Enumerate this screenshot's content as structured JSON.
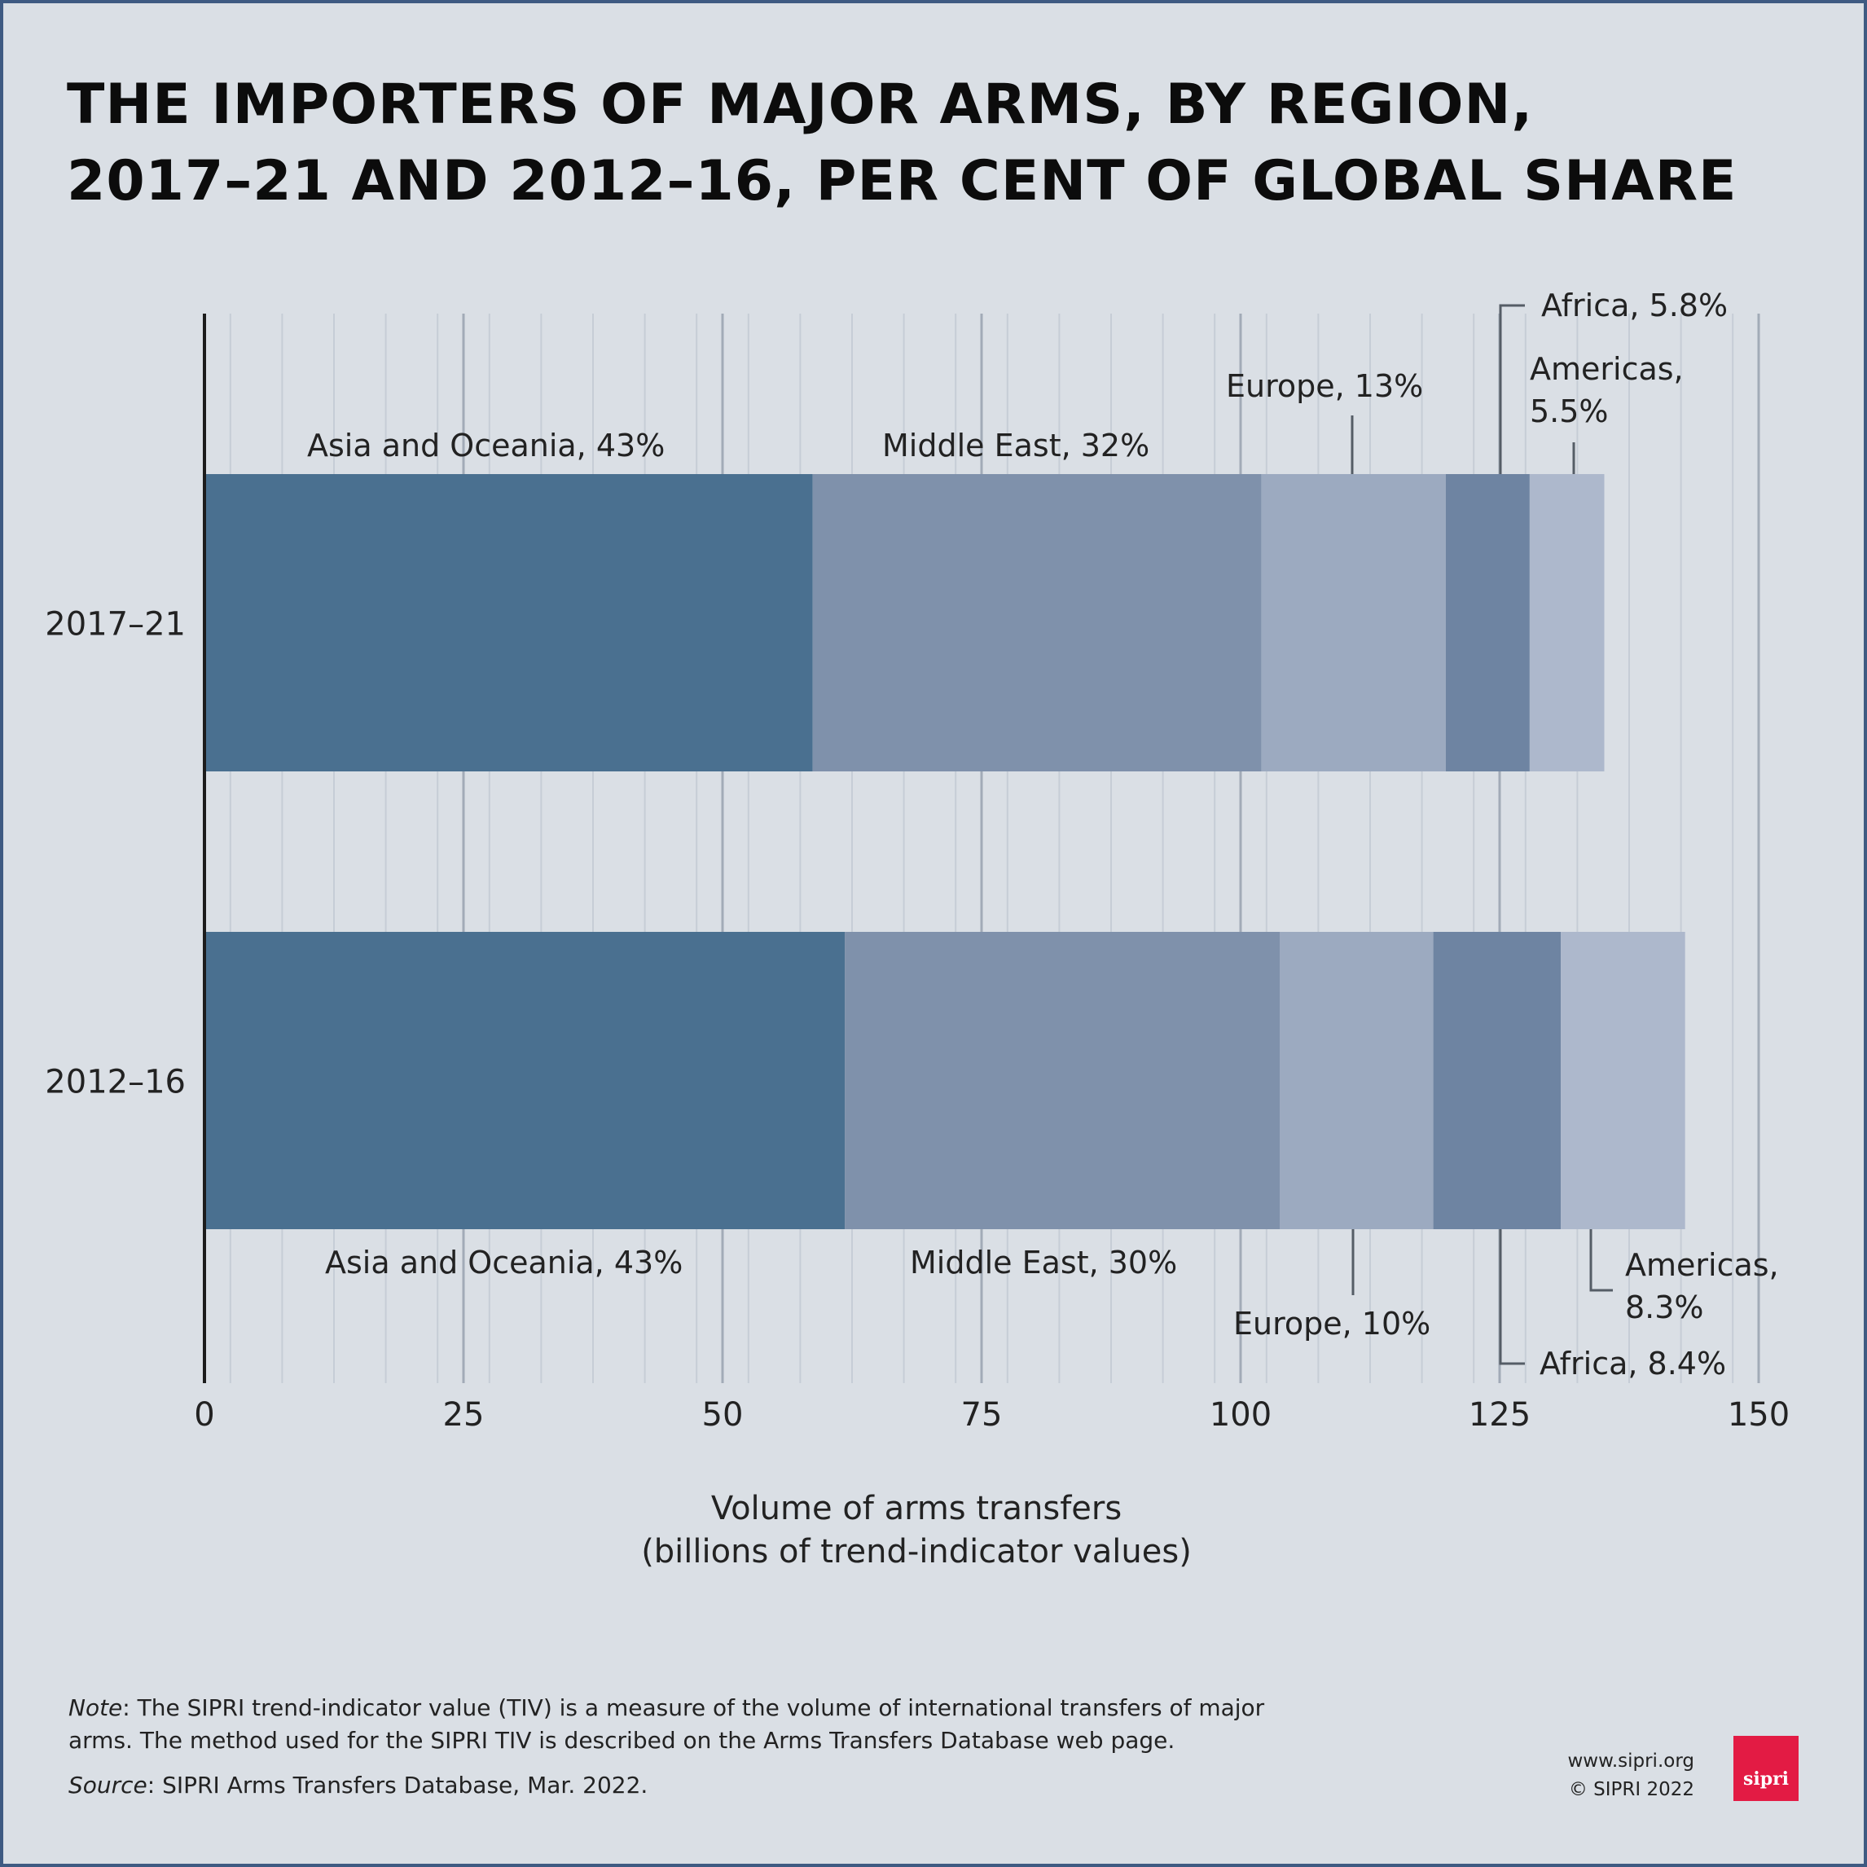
{
  "title": {
    "line1": "THE IMPORTERS OF MAJOR ARMS, BY REGION,",
    "line2": "2017–21 AND 2012–16, PER CENT OF GLOBAL SHARE"
  },
  "colors": {
    "background": "#dadfe5",
    "border": "#3e5a82",
    "asia_oceania": "#4a7090",
    "middle_east": "#7f91ab",
    "europe": "#9caac0",
    "africa": "#6e84a2",
    "americas": "#adb8cc",
    "logo": "#e31b44"
  },
  "chart_data": {
    "type": "bar",
    "orientation": "horizontal",
    "stacked": true,
    "categories": [
      "2017–21",
      "2012–16"
    ],
    "series": [
      {
        "name": "Asia and Oceania",
        "values": [
          58.7,
          61.8
        ],
        "labels": [
          "Asia and Oceania, 43%",
          "Asia and Oceania, 43%"
        ],
        "color": "#4a7090"
      },
      {
        "name": "Middle East",
        "values": [
          43.3,
          42.0
        ],
        "labels": [
          "Middle East, 32%",
          "Middle East, 30%"
        ],
        "color": "#7f91ab"
      },
      {
        "name": "Europe",
        "values": [
          17.8,
          14.8
        ],
        "labels": [
          "Europe, 13%",
          "Europe, 10%"
        ],
        "color": "#9caac0"
      },
      {
        "name": "Africa",
        "values": [
          8.1,
          12.3
        ],
        "labels": [
          "Africa, 5.8%",
          "Africa, 8.4%"
        ],
        "color": "#6e84a2"
      },
      {
        "name": "Americas",
        "values": [
          7.2,
          12.0
        ],
        "labels": [
          "Americas, 5.5%",
          "Americas, 8.3%"
        ],
        "color": "#adb8cc"
      }
    ],
    "xlim": [
      0,
      150
    ],
    "xticks": [
      0,
      25,
      50,
      75,
      100,
      125,
      150
    ],
    "xlabel": [
      "Volume of arms transfers",
      "(billions of trend-indicator values)"
    ],
    "grid": true
  },
  "footer": {
    "note_label": "Note",
    "note_text": ": The SIPRI trend-indicator value (TIV) is a measure of the volume of international transfers of major arms. The method used for the SIPRI TIV is described on the Arms Transfers Database web page.",
    "source_label": "Source",
    "source_text": ": SIPRI Arms Transfers Database, Mar. 2022.",
    "website": "www.sipri.org",
    "copyright": "© SIPRI 2022",
    "logo_text": "sipri"
  }
}
